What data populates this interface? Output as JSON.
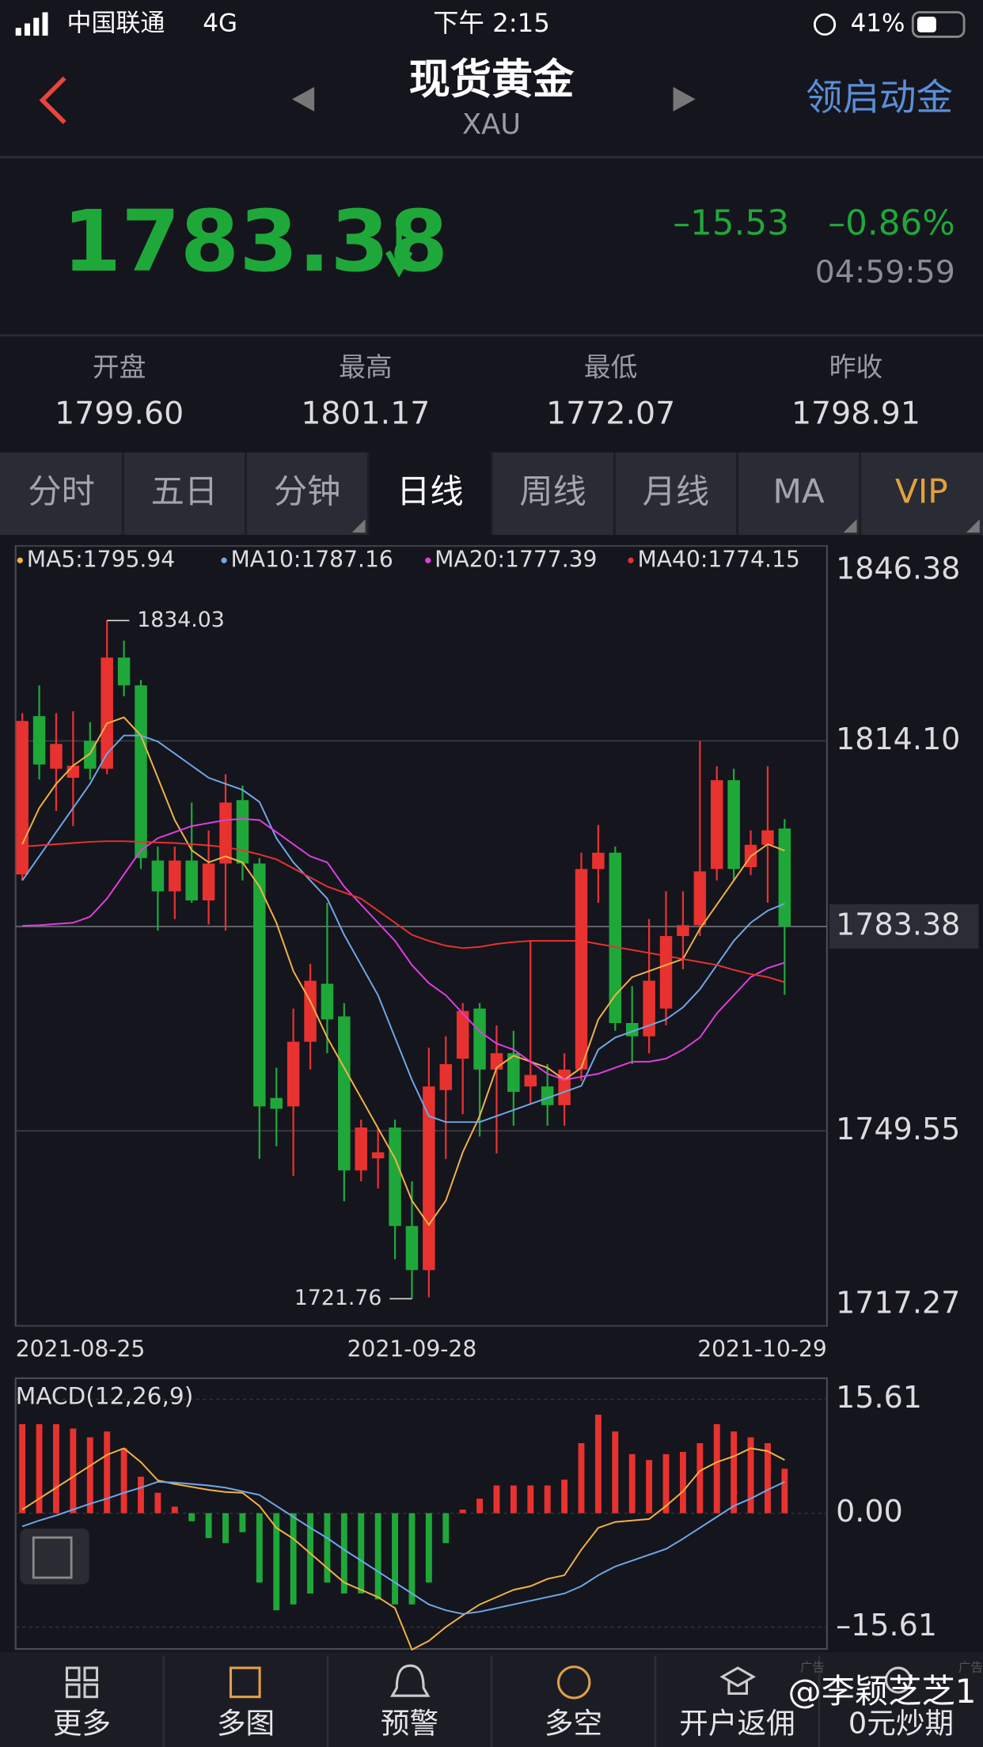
{
  "status": {
    "carrier": "中国联通",
    "network": "4G",
    "time": "下午 2:15",
    "battery": "41%"
  },
  "header": {
    "title": "现货黄金",
    "subtitle": "XAU",
    "action": "领启动金"
  },
  "quote": {
    "price": "1783.38",
    "change": "–15.53",
    "change_pct": "–0.86%",
    "time": "04:59:59"
  },
  "stats": [
    {
      "label": "开盘",
      "value": "1799.60"
    },
    {
      "label": "最高",
      "value": "1801.17"
    },
    {
      "label": "最低",
      "value": "1772.07"
    },
    {
      "label": "昨收",
      "value": "1798.91"
    }
  ],
  "tabs": {
    "items": [
      "分时",
      "五日",
      "分钟",
      "日线",
      "周线",
      "月线",
      "MA",
      "VIP"
    ],
    "active": 3
  },
  "chart_data": [
    {
      "type": "candlestick",
      "up_color": "#e8322f",
      "down_color": "#1fa83a",
      "categories": [
        "2021-08-25",
        null,
        null,
        null,
        null,
        null,
        null,
        null,
        null,
        null,
        null,
        null,
        null,
        null,
        null,
        null,
        null,
        null,
        null,
        null,
        null,
        null,
        null,
        "2021-09-28",
        null,
        null,
        null,
        null,
        null,
        null,
        null,
        null,
        null,
        null,
        null,
        null,
        null,
        null,
        null,
        null,
        null,
        null,
        null,
        null,
        null,
        "2021-10-29"
      ],
      "open": [
        1792.0,
        1818.2,
        1809.5,
        1808.0,
        1814.1,
        1809.5,
        1827.9,
        1823.3,
        1794.3,
        1789.2,
        1794.3,
        1787.7,
        1793.8,
        1804.3,
        1793.8,
        1755.0,
        1753.6,
        1764.3,
        1773.9,
        1768.5,
        1743.0,
        1745.0,
        1750.1,
        1733.8,
        1726.5,
        1756.3,
        1761.5,
        1769.8,
        1759.7,
        1762.4,
        1756.9,
        1756.9,
        1753.8,
        1759.7,
        1792.9,
        1795.6,
        1767.4,
        1765.2,
        1769.8,
        1781.8,
        1783.6,
        1792.9,
        1807.6,
        1793.2,
        1796.9,
        1799.6
      ],
      "high": [
        1818.7,
        1823.3,
        1818.7,
        1819.0,
        1817.2,
        1834.03,
        1830.7,
        1824.2,
        1796.6,
        1796.6,
        1803.9,
        1799.3,
        1808.6,
        1806.7,
        1794.7,
        1760.0,
        1769.8,
        1777.2,
        1787.3,
        1770.7,
        1751.4,
        1750.0,
        1751.4,
        1741.2,
        1763.3,
        1765.2,
        1770.7,
        1770.7,
        1767.0,
        1766.1,
        1780.9,
        1760.6,
        1762.4,
        1795.6,
        1800.2,
        1796.6,
        1773.5,
        1784.6,
        1789.2,
        1789.2,
        1814.1,
        1809.9,
        1809.5,
        1799.3,
        1809.9,
        1801.17
      ],
      "low": [
        1791.0,
        1807.7,
        1802.5,
        1800.0,
        1807.7,
        1808.6,
        1821.5,
        1792.9,
        1782.7,
        1784.6,
        1787.3,
        1783.7,
        1782.7,
        1791.0,
        1744.9,
        1747.0,
        1742.1,
        1759.7,
        1762.4,
        1737.9,
        1741.2,
        1740.0,
        1728.3,
        1721.76,
        1722.0,
        1744.9,
        1752.3,
        1748.6,
        1745.8,
        1750.4,
        1754.1,
        1750.4,
        1750.4,
        1757.8,
        1787.3,
        1766.1,
        1760.6,
        1762.4,
        1767.0,
        1776.3,
        1781.8,
        1791.0,
        1791.0,
        1791.9,
        1787.3,
        1772.07
      ],
      "close": [
        1817.4,
        1810.2,
        1813.6,
        1810.0,
        1809.5,
        1827.9,
        1823.3,
        1794.7,
        1789.2,
        1794.3,
        1787.7,
        1793.8,
        1803.9,
        1793.8,
        1753.6,
        1753.2,
        1764.3,
        1774.4,
        1768.0,
        1743.0,
        1750.1,
        1746.0,
        1733.8,
        1726.5,
        1756.9,
        1760.6,
        1769.4,
        1759.7,
        1762.4,
        1756.0,
        1758.8,
        1753.8,
        1759.7,
        1792.9,
        1795.6,
        1767.4,
        1765.2,
        1774.4,
        1781.8,
        1783.6,
        1792.5,
        1807.6,
        1792.9,
        1796.9,
        1799.3,
        1783.38
      ],
      "series": [
        {
          "name": "MA5:1795.94",
          "color": "#f2b245",
          "values": [
            1797,
            1803,
            1807,
            1810,
            1812,
            1817,
            1818,
            1815,
            1808,
            1801,
            1796,
            1794,
            1795,
            1794,
            1790,
            1784,
            1776,
            1771,
            1765,
            1760,
            1755,
            1750,
            1745,
            1738,
            1734,
            1738,
            1746,
            1752,
            1760,
            1762,
            1761,
            1760,
            1758,
            1760,
            1768,
            1772,
            1775,
            1776,
            1777,
            1778,
            1783,
            1787,
            1791,
            1795,
            1797,
            1795.94
          ]
        },
        {
          "name": "MA10:1787.16",
          "color": "#6ea8e8",
          "values": [
            1791,
            1795,
            1799,
            1803,
            1807,
            1812,
            1815,
            1815,
            1814,
            1812,
            1810,
            1808,
            1807,
            1806,
            1804,
            1798,
            1794,
            1791,
            1788,
            1782,
            1777,
            1772,
            1765,
            1758,
            1752,
            1751,
            1751,
            1751,
            1752,
            1753,
            1754,
            1755,
            1756,
            1757,
            1763,
            1765,
            1766,
            1767,
            1768,
            1770,
            1773,
            1777,
            1781,
            1784,
            1786,
            1787.16
          ]
        },
        {
          "name": "MA20:1777.39",
          "color": "#e03ee0",
          "values": [
            1783.5,
            1783.6,
            1783.8,
            1784,
            1785,
            1788,
            1792,
            1796,
            1798,
            1799,
            1800,
            1800.5,
            1801,
            1801.2,
            1801,
            1799,
            1797,
            1795,
            1794,
            1790,
            1787,
            1784,
            1781,
            1777,
            1774,
            1772,
            1769,
            1766,
            1764,
            1763,
            1761,
            1759,
            1758,
            1758.5,
            1759,
            1760,
            1761,
            1761,
            1761.5,
            1763,
            1765,
            1769,
            1772,
            1775,
            1776.5,
            1777.39
          ]
        },
        {
          "name": "MA40:1774.15",
          "color": "#e8322f",
          "values": [
            1796.6,
            1796.8,
            1797,
            1797.2,
            1797.4,
            1797.5,
            1797.5,
            1797.4,
            1797.3,
            1797.2,
            1797,
            1796.8,
            1796.5,
            1796,
            1795.3,
            1794.5,
            1793,
            1791.5,
            1790,
            1789,
            1788,
            1786,
            1784,
            1782,
            1781,
            1780.2,
            1779.8,
            1780,
            1780.5,
            1780.8,
            1781,
            1781,
            1781,
            1781,
            1780.5,
            1780,
            1779.5,
            1779,
            1778.5,
            1778,
            1777.5,
            1777,
            1776.2,
            1775.5,
            1775,
            1774.15
          ]
        }
      ],
      "ylim": [
        1717.27,
        1846.38
      ],
      "yticks": [
        1846.38,
        {
          "value": 1814.1,
          "label": "1814.10"
        },
        1783.38,
        1749.55,
        1717.27
      ],
      "grid": true
    },
    {
      "type": "bar",
      "title": "MACD(12,26,9)",
      "up_color": "#e8322f",
      "down_color": "#1fa83a",
      "values": [
        12.2,
        12.2,
        12.2,
        11.6,
        10.4,
        11.2,
        8.9,
        5.0,
        2.8,
        0.9,
        -1.1,
        -3.4,
        -4.1,
        -2.6,
        -9.5,
        -13.3,
        -12.5,
        -11,
        -9.5,
        -11,
        -11,
        -11.8,
        -12.5,
        -12.5,
        -9.5,
        -4.1,
        0.5,
        2,
        3.8,
        3.8,
        3.8,
        3.8,
        4.6,
        9.6,
        13.5,
        11.2,
        8.1,
        7.3,
        8.1,
        8.4,
        9.6,
        12.2,
        11.2,
        10.4,
        9.6,
        6.1
      ],
      "series": [
        {
          "color": "#f2b245",
          "values": [
            0.5,
            2,
            3.5,
            5,
            6.5,
            8,
            8.9,
            7,
            4.5,
            4,
            3.6,
            3.2,
            2.9,
            2.8,
            1,
            -2,
            -3.5,
            -5.5,
            -7.5,
            -9.5,
            -10.5,
            -11.5,
            -13,
            -18.7,
            -17.5,
            -15.6,
            -14,
            -12.5,
            -11.5,
            -10.5,
            -10,
            -9,
            -8.5,
            -5,
            -2,
            -1.2,
            -1,
            -0.8,
            1,
            3,
            5.8,
            7,
            7.8,
            8.9,
            8.5,
            7.3
          ]
        },
        {
          "color": "#6ea8e8",
          "values": [
            -1.8,
            -1,
            -0.3,
            0.5,
            1.3,
            2,
            2.8,
            3.5,
            4.3,
            4.2,
            4,
            3.8,
            3.5,
            3,
            2.5,
            1,
            -0.5,
            -2,
            -3.4,
            -5,
            -6.5,
            -8,
            -9.5,
            -11,
            -12.5,
            -13.3,
            -13.8,
            -13.5,
            -13,
            -12.5,
            -12,
            -11.5,
            -11,
            -10,
            -8.5,
            -7.3,
            -6.5,
            -5.7,
            -4.9,
            -3.5,
            -2,
            -0.5,
            1,
            2,
            3.2,
            4.3
          ]
        }
      ],
      "ylim": [
        -18.6,
        18.5
      ],
      "yticks": [
        15.61,
        {
          "value": 0,
          "label": "0.00"
        },
        {
          "value": -15.61,
          "label": "–15.61"
        }
      ],
      "grid": true
    }
  ],
  "nav": {
    "items": [
      "更多",
      "多图",
      "预警",
      "多空",
      "开户返佣",
      "0元炒期"
    ],
    "ad_label": "广告",
    "watermark": "@李颖芝芝1"
  }
}
